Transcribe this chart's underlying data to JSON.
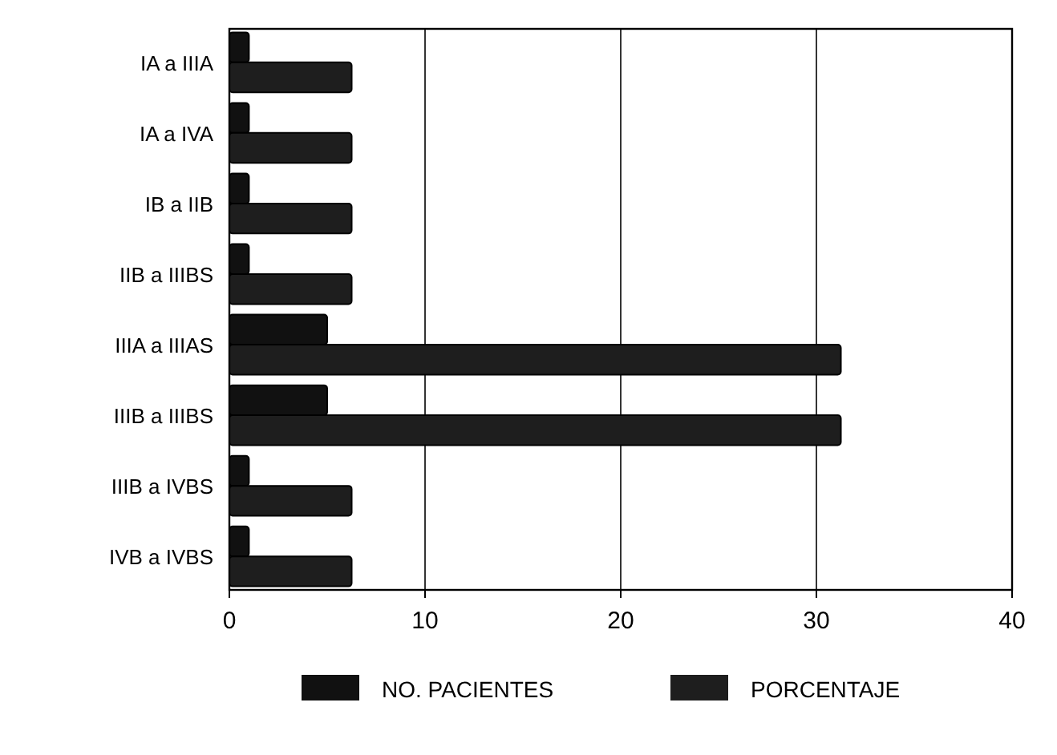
{
  "chart_data": {
    "type": "bar",
    "orientation": "horizontal",
    "categories": [
      "IA a IIIA",
      "IA a IVA",
      "IB a IIB",
      "IIB a IIIBS",
      "IIIA a IIIAS",
      "IIIB a IIIBS",
      "IIIB a IVBS",
      "IVB a IVBS"
    ],
    "series": [
      {
        "name": "NO. PACIENTES",
        "color": "#111111",
        "values": [
          1,
          1,
          1,
          1,
          5,
          5,
          1,
          1
        ]
      },
      {
        "name": "PORCENTAJE",
        "color": "#1e1e1e",
        "values": [
          6.25,
          6.25,
          6.25,
          6.25,
          31.25,
          31.25,
          6.25,
          6.25
        ]
      }
    ],
    "xlim": [
      0,
      40
    ],
    "xticks": [
      0,
      10,
      20,
      30,
      40
    ],
    "grid": "x",
    "legend": "bottom"
  }
}
